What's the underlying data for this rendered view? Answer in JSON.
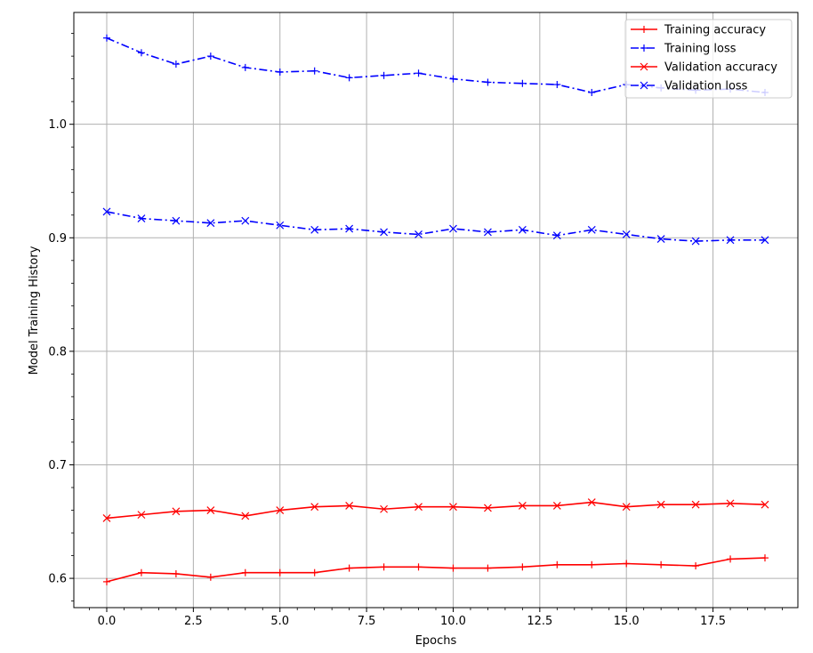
{
  "chart_data": {
    "type": "line",
    "xlabel": "Epochs",
    "ylabel": "Model Training History",
    "xlim": [
      -0.95,
      19.95
    ],
    "ylim": [
      0.5742,
      1.0985
    ],
    "xticks": [
      0.0,
      2.5,
      5.0,
      7.5,
      10.0,
      12.5,
      15.0,
      17.5
    ],
    "xtick_labels": [
      "0.0",
      "2.5",
      "5.0",
      "7.5",
      "10.0",
      "12.5",
      "15.0",
      "17.5"
    ],
    "yticks": [
      0.6,
      0.7,
      0.8,
      0.9,
      1.0
    ],
    "ytick_labels": [
      "0.6",
      "0.7",
      "0.8",
      "0.9",
      "1.0"
    ],
    "grid": true,
    "legend_position": "top-right",
    "x": [
      0,
      1,
      2,
      3,
      4,
      5,
      6,
      7,
      8,
      9,
      10,
      11,
      12,
      13,
      14,
      15,
      16,
      17,
      18,
      19
    ],
    "series": [
      {
        "name": "Training accuracy",
        "color": "#ff0000",
        "line_style": "solid",
        "marker": "plus",
        "values": [
          0.597,
          0.605,
          0.604,
          0.601,
          0.605,
          0.605,
          0.605,
          0.609,
          0.61,
          0.61,
          0.609,
          0.609,
          0.61,
          0.612,
          0.612,
          0.613,
          0.612,
          0.611,
          0.617,
          0.618
        ]
      },
      {
        "name": "Training loss",
        "color": "#0000ff",
        "line_style": "dashdot",
        "marker": "plus",
        "values": [
          1.076,
          1.063,
          1.053,
          1.06,
          1.05,
          1.046,
          1.047,
          1.041,
          1.043,
          1.045,
          1.04,
          1.037,
          1.036,
          1.035,
          1.028,
          1.035,
          1.032,
          1.03,
          1.031,
          1.028
        ]
      },
      {
        "name": "Validation accuracy",
        "color": "#ff0000",
        "line_style": "solid",
        "marker": "x",
        "values": [
          0.653,
          0.656,
          0.659,
          0.66,
          0.655,
          0.66,
          0.663,
          0.664,
          0.661,
          0.663,
          0.663,
          0.662,
          0.664,
          0.664,
          0.667,
          0.663,
          0.665,
          0.665,
          0.666,
          0.665
        ]
      },
      {
        "name": "Validation loss",
        "color": "#0000ff",
        "line_style": "dashdot",
        "marker": "x",
        "values": [
          0.923,
          0.917,
          0.915,
          0.913,
          0.915,
          0.911,
          0.907,
          0.908,
          0.905,
          0.903,
          0.908,
          0.905,
          0.907,
          0.902,
          0.907,
          0.903,
          0.899,
          0.897,
          0.898,
          0.898
        ]
      }
    ]
  }
}
